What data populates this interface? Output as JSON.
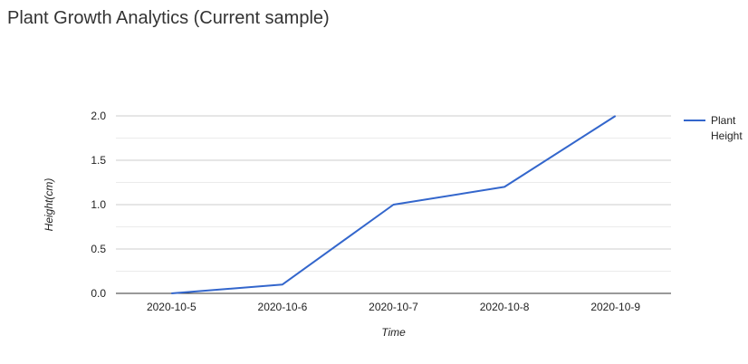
{
  "chart_data": {
    "type": "line",
    "title": "Plant Growth Analytics (Current sample)",
    "xlabel": "Time",
    "ylabel": "Height(cm)",
    "categories": [
      "2020-10-5",
      "2020-10-6",
      "2020-10-7",
      "2020-10-8",
      "2020-10-9"
    ],
    "series": [
      {
        "name": "Plant Height",
        "name_lines": [
          "Plant",
          "Height"
        ],
        "values": [
          0,
          0.1,
          1.0,
          1.2,
          2.0
        ],
        "color": "#3366cc"
      }
    ],
    "ylim": [
      0,
      2.0
    ],
    "yticks": [
      "0.0",
      "0.5",
      "1.0",
      "1.5",
      "2.0"
    ],
    "grid": true,
    "minor_grid": true,
    "legend_position": "right"
  }
}
